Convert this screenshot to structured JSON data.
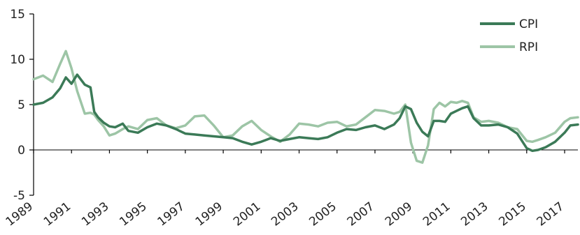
{
  "chart_data": {
    "type": "line",
    "title": "",
    "xlabel": "",
    "ylabel": "",
    "xlim": [
      1989,
      2017.7
    ],
    "ylim": [
      -5,
      15
    ],
    "y_ticks": [
      15,
      10,
      5,
      0,
      -5
    ],
    "x_tick_labels": [
      "1989",
      "1991",
      "1993",
      "1995",
      "1997",
      "1999",
      "2001",
      "2003",
      "2005",
      "2007",
      "2009",
      "2011",
      "2013",
      "2015",
      "2017"
    ],
    "grid": false,
    "legend_position": "top-right",
    "series": [
      {
        "name": "CPI",
        "color": "#3b7a57",
        "x": [
          1989,
          1989.5,
          1990,
          1990.4,
          1990.7,
          1991,
          1991.3,
          1991.7,
          1992,
          1992.2,
          1992.4,
          1992.7,
          1993,
          1993.3,
          1993.7,
          1994,
          1994.5,
          1995,
          1995.5,
          1996,
          1996.5,
          1997,
          1997.5,
          1998,
          1998.5,
          1999,
          1999.5,
          2000,
          2000.5,
          2001,
          2001.5,
          2002,
          2002.5,
          2003,
          2003.5,
          2004,
          2004.5,
          2005,
          2005.5,
          2006,
          2006.5,
          2007,
          2007.5,
          2008,
          2008.3,
          2008.6,
          2008.9,
          2009.2,
          2009.5,
          2009.8,
          2010.1,
          2010.4,
          2010.7,
          2011,
          2011.3,
          2011.6,
          2011.9,
          2012.2,
          2012.6,
          2013,
          2013.5,
          2014,
          2014.5,
          2015,
          2015.3,
          2015.6,
          2016,
          2016.5,
          2017,
          2017.3,
          2017.7
        ],
        "values": [
          5.0,
          5.2,
          5.8,
          6.8,
          8.0,
          7.3,
          8.3,
          7.2,
          6.9,
          4.2,
          3.6,
          3.0,
          2.6,
          2.5,
          2.9,
          2.1,
          1.9,
          2.5,
          2.9,
          2.7,
          2.3,
          1.8,
          1.7,
          1.6,
          1.5,
          1.4,
          1.3,
          0.9,
          0.6,
          0.9,
          1.3,
          1.0,
          1.2,
          1.4,
          1.3,
          1.2,
          1.4,
          1.9,
          2.3,
          2.2,
          2.5,
          2.7,
          2.3,
          2.8,
          3.5,
          4.8,
          4.5,
          3.0,
          2.0,
          1.5,
          3.2,
          3.2,
          3.1,
          4.0,
          4.3,
          4.6,
          4.8,
          3.5,
          2.7,
          2.7,
          2.8,
          2.5,
          1.8,
          0.2,
          -0.1,
          0.0,
          0.3,
          0.9,
          1.9,
          2.7,
          2.8
        ]
      },
      {
        "name": "RPI",
        "color": "#9dc5a6",
        "x": [
          1989,
          1989.5,
          1990,
          1990.4,
          1990.7,
          1991,
          1991.3,
          1991.7,
          1992,
          1992.2,
          1992.4,
          1992.7,
          1993,
          1993.3,
          1993.7,
          1994,
          1994.5,
          1995,
          1995.5,
          1996,
          1996.5,
          1997,
          1997.5,
          1998,
          1998.5,
          1999,
          1999.5,
          2000,
          2000.5,
          2001,
          2001.5,
          2002,
          2002.5,
          2003,
          2003.5,
          2004,
          2004.5,
          2005,
          2005.5,
          2006,
          2006.5,
          2007,
          2007.5,
          2008,
          2008.3,
          2008.6,
          2008.9,
          2009.2,
          2009.5,
          2009.8,
          2010.1,
          2010.4,
          2010.7,
          2011,
          2011.3,
          2011.6,
          2011.9,
          2012.2,
          2012.6,
          2013,
          2013.5,
          2014,
          2014.5,
          2015,
          2015.3,
          2015.6,
          2016,
          2016.5,
          2017,
          2017.3,
          2017.7
        ],
        "values": [
          7.8,
          8.2,
          7.5,
          9.5,
          10.9,
          9.0,
          6.5,
          4.0,
          4.1,
          3.9,
          3.3,
          2.6,
          1.6,
          1.8,
          2.3,
          2.6,
          2.3,
          3.3,
          3.5,
          2.7,
          2.4,
          2.7,
          3.7,
          3.8,
          2.7,
          1.4,
          1.6,
          2.6,
          3.2,
          2.2,
          1.5,
          0.9,
          1.7,
          2.9,
          2.8,
          2.6,
          3.0,
          3.1,
          2.6,
          2.8,
          3.6,
          4.4,
          4.3,
          4.0,
          4.2,
          5.0,
          0.8,
          -1.2,
          -1.4,
          0.5,
          4.5,
          5.2,
          4.8,
          5.3,
          5.2,
          5.4,
          5.2,
          3.6,
          3.1,
          3.2,
          3.0,
          2.5,
          2.3,
          1.0,
          0.9,
          1.1,
          1.4,
          1.9,
          3.1,
          3.5,
          3.6
        ]
      }
    ]
  }
}
